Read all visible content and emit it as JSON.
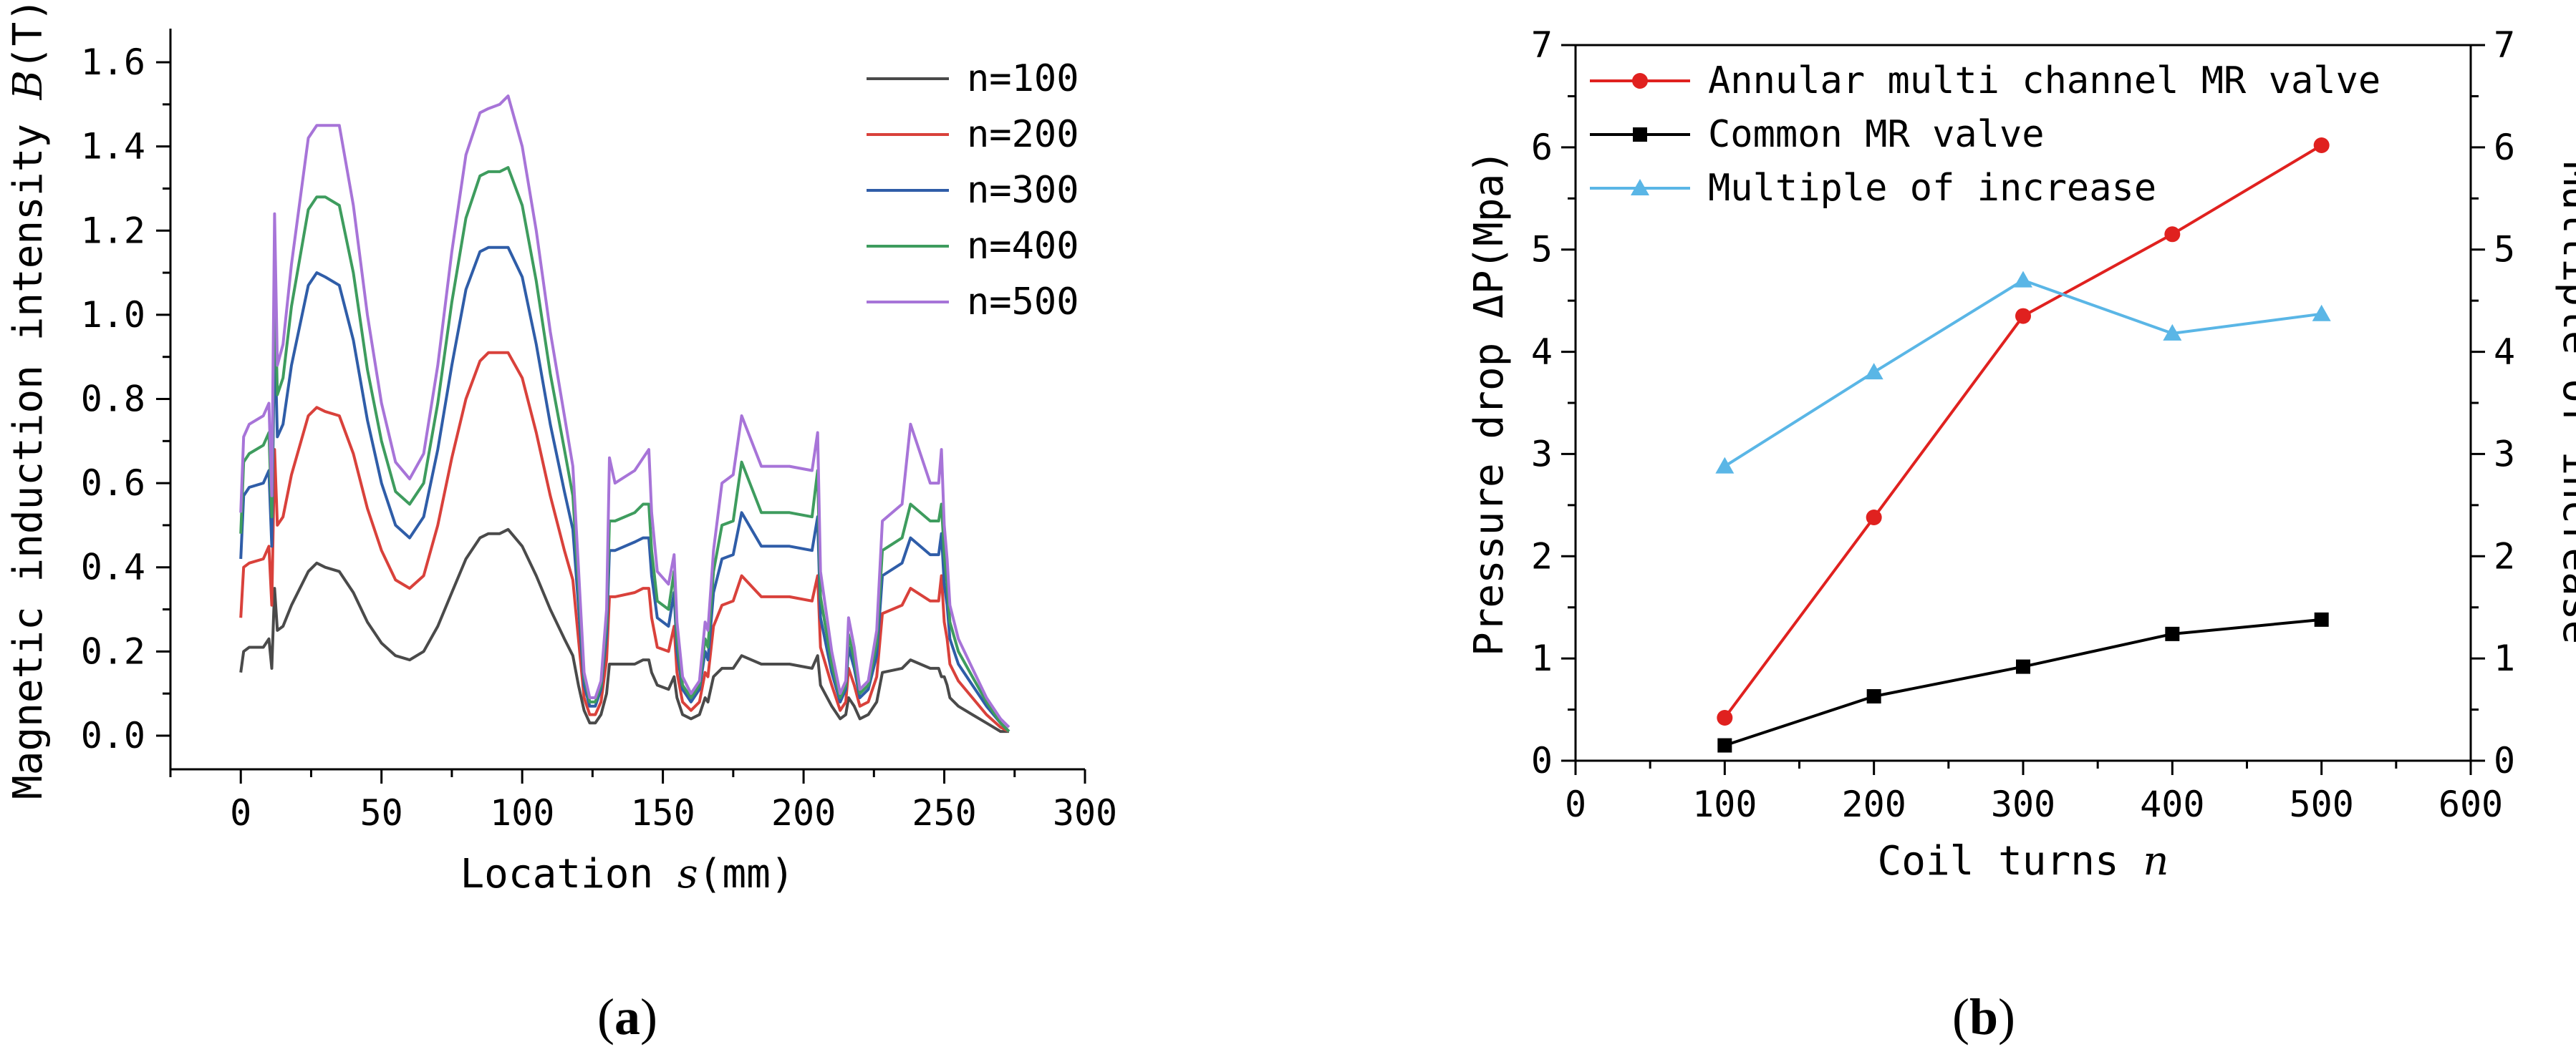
{
  "chart_data": [
    {
      "type": "line",
      "panel_label": "a",
      "xlabel": "Location s(mm)",
      "ylabel": "Magnetic induction intensity B(T)",
      "xlim": [
        -25,
        300
      ],
      "ylim": [
        -0.08,
        1.68
      ],
      "xticks": [
        0,
        50,
        100,
        150,
        200,
        250,
        300
      ],
      "yticks": [
        0.0,
        0.2,
        0.4,
        0.6,
        0.8,
        1.0,
        1.2,
        1.4,
        1.6
      ],
      "ytick_labels": [
        "0.0",
        "0.2",
        "0.4",
        "0.6",
        "0.8",
        "1.0",
        "1.2",
        "1.4",
        "1.6"
      ],
      "legend_position": "top-right",
      "x": [
        0,
        1,
        3,
        8,
        10,
        11,
        12,
        13,
        15,
        18,
        24,
        27,
        30,
        35,
        40,
        45,
        50,
        55,
        60,
        65,
        70,
        75,
        80,
        85,
        88,
        92,
        95,
        100,
        105,
        110,
        115,
        118,
        120,
        122,
        124,
        126,
        128,
        130,
        131,
        133,
        140,
        143,
        145,
        146,
        148,
        152,
        154,
        155,
        157,
        160,
        163,
        165,
        166,
        168,
        171,
        175,
        178,
        185,
        195,
        203,
        205,
        206,
        210,
        213,
        215,
        216,
        218,
        220,
        223,
        226,
        228,
        235,
        238,
        245,
        248,
        249,
        250,
        251,
        252,
        255,
        260,
        265,
        270,
        273
      ],
      "series": [
        {
          "name": "n=100",
          "color": "#4a4a4a",
          "values": [
            0.15,
            0.2,
            0.21,
            0.21,
            0.23,
            0.16,
            0.35,
            0.25,
            0.26,
            0.31,
            0.39,
            0.41,
            0.4,
            0.39,
            0.34,
            0.27,
            0.22,
            0.19,
            0.18,
            0.2,
            0.26,
            0.34,
            0.42,
            0.47,
            0.48,
            0.48,
            0.49,
            0.45,
            0.38,
            0.3,
            0.23,
            0.19,
            0.12,
            0.06,
            0.03,
            0.03,
            0.05,
            0.1,
            0.17,
            0.17,
            0.17,
            0.18,
            0.18,
            0.15,
            0.12,
            0.11,
            0.14,
            0.09,
            0.05,
            0.04,
            0.05,
            0.09,
            0.08,
            0.14,
            0.16,
            0.16,
            0.19,
            0.17,
            0.17,
            0.16,
            0.19,
            0.12,
            0.07,
            0.04,
            0.05,
            0.09,
            0.07,
            0.04,
            0.05,
            0.08,
            0.15,
            0.16,
            0.18,
            0.16,
            0.16,
            0.14,
            0.14,
            0.12,
            0.09,
            0.07,
            0.05,
            0.03,
            0.01,
            0.01
          ]
        },
        {
          "name": "n=200",
          "color": "#d9413b",
          "values": [
            0.28,
            0.4,
            0.41,
            0.42,
            0.45,
            0.31,
            0.68,
            0.5,
            0.52,
            0.62,
            0.76,
            0.78,
            0.77,
            0.76,
            0.67,
            0.54,
            0.44,
            0.37,
            0.35,
            0.38,
            0.5,
            0.66,
            0.8,
            0.89,
            0.91,
            0.91,
            0.91,
            0.85,
            0.72,
            0.57,
            0.44,
            0.37,
            0.23,
            0.09,
            0.05,
            0.05,
            0.08,
            0.18,
            0.33,
            0.33,
            0.34,
            0.35,
            0.35,
            0.28,
            0.21,
            0.2,
            0.26,
            0.15,
            0.08,
            0.06,
            0.08,
            0.15,
            0.14,
            0.26,
            0.31,
            0.32,
            0.38,
            0.33,
            0.33,
            0.32,
            0.38,
            0.21,
            0.12,
            0.06,
            0.08,
            0.16,
            0.12,
            0.07,
            0.08,
            0.14,
            0.29,
            0.31,
            0.35,
            0.32,
            0.32,
            0.38,
            0.27,
            0.23,
            0.17,
            0.13,
            0.09,
            0.05,
            0.02,
            0.01
          ]
        },
        {
          "name": "n=300",
          "color": "#2f5da8",
          "values": [
            0.42,
            0.57,
            0.59,
            0.6,
            0.63,
            0.45,
            0.97,
            0.71,
            0.74,
            0.88,
            1.07,
            1.1,
            1.09,
            1.07,
            0.94,
            0.75,
            0.6,
            0.5,
            0.47,
            0.52,
            0.68,
            0.88,
            1.06,
            1.15,
            1.16,
            1.16,
            1.16,
            1.09,
            0.93,
            0.74,
            0.58,
            0.49,
            0.31,
            0.12,
            0.07,
            0.07,
            0.11,
            0.24,
            0.44,
            0.44,
            0.46,
            0.47,
            0.47,
            0.38,
            0.28,
            0.26,
            0.34,
            0.2,
            0.11,
            0.08,
            0.11,
            0.2,
            0.18,
            0.34,
            0.42,
            0.43,
            0.53,
            0.45,
            0.45,
            0.44,
            0.52,
            0.28,
            0.15,
            0.08,
            0.11,
            0.21,
            0.16,
            0.09,
            0.11,
            0.19,
            0.38,
            0.41,
            0.47,
            0.43,
            0.43,
            0.48,
            0.36,
            0.31,
            0.23,
            0.17,
            0.12,
            0.07,
            0.03,
            0.01
          ]
        },
        {
          "name": "n=400",
          "color": "#3e9c5e",
          "values": [
            0.48,
            0.65,
            0.67,
            0.69,
            0.72,
            0.52,
            1.1,
            0.81,
            0.85,
            1.02,
            1.25,
            1.28,
            1.28,
            1.26,
            1.1,
            0.87,
            0.7,
            0.58,
            0.55,
            0.6,
            0.79,
            1.03,
            1.23,
            1.33,
            1.34,
            1.34,
            1.35,
            1.26,
            1.08,
            0.86,
            0.68,
            0.57,
            0.36,
            0.14,
            0.08,
            0.08,
            0.12,
            0.27,
            0.51,
            0.51,
            0.53,
            0.55,
            0.55,
            0.44,
            0.32,
            0.3,
            0.39,
            0.23,
            0.12,
            0.09,
            0.12,
            0.23,
            0.21,
            0.39,
            0.5,
            0.51,
            0.65,
            0.53,
            0.53,
            0.52,
            0.63,
            0.33,
            0.17,
            0.09,
            0.12,
            0.24,
            0.18,
            0.1,
            0.12,
            0.22,
            0.44,
            0.47,
            0.55,
            0.51,
            0.51,
            0.55,
            0.43,
            0.36,
            0.27,
            0.2,
            0.14,
            0.08,
            0.03,
            0.01
          ]
        },
        {
          "name": "n=500",
          "color": "#a774d8",
          "values": [
            0.53,
            0.71,
            0.74,
            0.76,
            0.79,
            0.57,
            1.24,
            0.88,
            0.93,
            1.12,
            1.42,
            1.45,
            1.45,
            1.45,
            1.26,
            1.0,
            0.79,
            0.65,
            0.61,
            0.67,
            0.88,
            1.15,
            1.38,
            1.48,
            1.49,
            1.5,
            1.52,
            1.4,
            1.2,
            0.96,
            0.76,
            0.64,
            0.4,
            0.15,
            0.09,
            0.09,
            0.13,
            0.3,
            0.66,
            0.6,
            0.63,
            0.66,
            0.68,
            0.53,
            0.39,
            0.36,
            0.43,
            0.27,
            0.14,
            0.1,
            0.13,
            0.27,
            0.25,
            0.44,
            0.6,
            0.62,
            0.76,
            0.64,
            0.64,
            0.63,
            0.72,
            0.39,
            0.2,
            0.1,
            0.13,
            0.28,
            0.21,
            0.11,
            0.13,
            0.25,
            0.51,
            0.55,
            0.74,
            0.6,
            0.6,
            0.68,
            0.5,
            0.42,
            0.31,
            0.23,
            0.16,
            0.09,
            0.04,
            0.02
          ]
        }
      ]
    },
    {
      "type": "line",
      "panel_label": "b",
      "xlabel": "Coil turns n",
      "ylabel": "Pressure drop ΔP(Mpa)",
      "y2label": "Multiple of increase",
      "xlim": [
        0,
        600
      ],
      "ylim": [
        0,
        7
      ],
      "y2lim": [
        0,
        7
      ],
      "xticks": [
        0,
        100,
        200,
        300,
        400,
        500,
        600
      ],
      "yticks": [
        0,
        1,
        2,
        3,
        4,
        5,
        6,
        7
      ],
      "legend_position": "top-left",
      "x": [
        100,
        200,
        300,
        400,
        500
      ],
      "series": [
        {
          "name": "Annular multi channel MR valve",
          "color": "#e0211f",
          "marker": "circle",
          "axis": "left",
          "values": [
            0.42,
            2.38,
            4.35,
            5.15,
            6.02
          ]
        },
        {
          "name": "Common MR valve",
          "color": "#000000",
          "marker": "square",
          "axis": "left",
          "values": [
            0.15,
            0.63,
            0.92,
            1.24,
            1.38
          ]
        },
        {
          "name": "Multiple of increase",
          "color": "#5ab6e6",
          "marker": "triangle",
          "axis": "right",
          "values": [
            2.88,
            3.8,
            4.7,
            4.18,
            4.37
          ]
        }
      ]
    }
  ]
}
